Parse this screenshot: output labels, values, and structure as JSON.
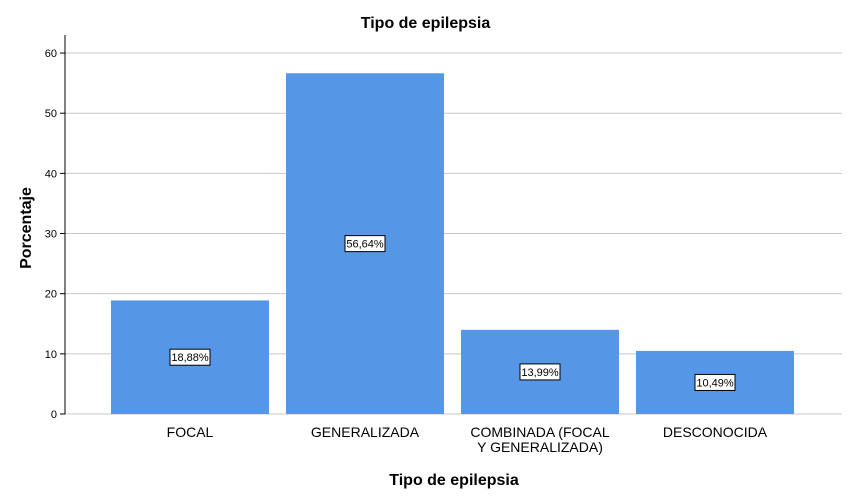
{
  "chart_data": {
    "type": "bar",
    "title": "Tipo de epilepsia",
    "xlabel": "Tipo de epilepsia",
    "ylabel": "Porcentaje",
    "categories": [
      "FOCAL",
      "GENERALIZADA",
      "COMBINADA (FOCAL Y GENERALIZADA)",
      "DESCONOCIDA"
    ],
    "category_lines": [
      [
        "FOCAL"
      ],
      [
        "GENERALIZADA"
      ],
      [
        "COMBINADA (FOCAL",
        "Y GENERALIZADA)"
      ],
      [
        "DESCONOCIDA"
      ]
    ],
    "values": [
      18.88,
      56.64,
      13.99,
      10.49
    ],
    "data_labels": [
      "18,88%",
      "56,64%",
      "13,99%",
      "10,49%"
    ],
    "ylim": [
      0,
      63
    ],
    "yticks": [
      0,
      10,
      20,
      30,
      40,
      50,
      60
    ],
    "grid": true,
    "bar_color": "#5596E6"
  }
}
